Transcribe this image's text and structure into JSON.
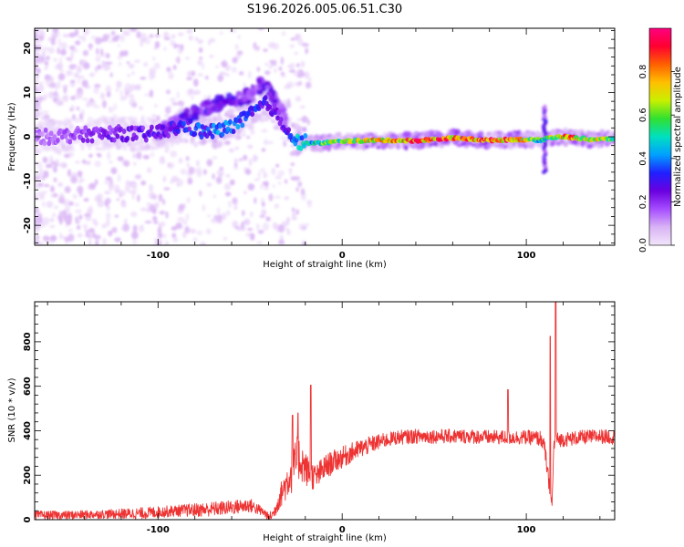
{
  "figure_title": "S196.2026.005.06.51.C30",
  "chart_data": [
    {
      "type": "heatmap",
      "xlabel": "Height of straight line (km)",
      "ylabel": "Frequency (Hz)",
      "xlim": [
        -167,
        148
      ],
      "ylim": [
        -24.5,
        24.5
      ],
      "x_ticks": [
        -100,
        0,
        100
      ],
      "y_ticks": [
        -20,
        -10,
        0,
        10,
        20
      ],
      "grid": false,
      "colorbar": {
        "label": "Normalized spectral amplitude",
        "range": [
          0,
          1
        ],
        "ticks": [
          "0.0",
          "0.2",
          "0.4",
          "0.6",
          "0.8"
        ],
        "colors": [
          "#f2e6fb",
          "#d9b3f5",
          "#a64dff",
          "#6a00e0",
          "#2020ff",
          "#00a0ff",
          "#00e0c0",
          "#30e030",
          "#c8f000",
          "#ffc000",
          "#ff6000",
          "#ff0030",
          "#ff0080"
        ]
      },
      "ridge": {
        "x": [
          -160,
          -140,
          -120,
          -105,
          -95,
          -85,
          -75,
          -65,
          -55,
          -48,
          -42,
          -38,
          -34,
          -30,
          -26,
          -22,
          -15,
          -8,
          0,
          20,
          40,
          60,
          80,
          95,
          108,
          112,
          120,
          135,
          148
        ],
        "y": [
          0,
          0.5,
          0.8,
          0.5,
          1.5,
          2.5,
          1.0,
          1.5,
          3.5,
          5.5,
          7.5,
          6.5,
          4.0,
          2.0,
          -1.0,
          -1.2,
          -1.5,
          -1.3,
          -1.0,
          -0.8,
          -0.9,
          -0.3,
          -0.8,
          -0.6,
          -0.8,
          -0.2,
          0.0,
          -0.6,
          -0.5
        ],
        "amplitude": [
          0.15,
          0.2,
          0.25,
          0.25,
          0.3,
          0.3,
          0.35,
          0.4,
          0.4,
          0.35,
          0.3,
          0.28,
          0.25,
          0.3,
          0.4,
          0.45,
          0.5,
          0.6,
          0.65,
          0.75,
          0.85,
          0.82,
          0.85,
          0.8,
          0.5,
          0.6,
          0.8,
          0.7,
          0.6
        ]
      },
      "upper_ridge": {
        "x": [
          -100,
          -90,
          -80,
          -70,
          -60,
          -50,
          -45,
          -40,
          -35,
          -30
        ],
        "y": [
          1.0,
          3.0,
          5.5,
          7.0,
          8.0,
          9.5,
          11.5,
          10.5,
          7.5,
          3.0
        ],
        "amplitude": [
          0.2,
          0.25,
          0.3,
          0.3,
          0.3,
          0.25,
          0.25,
          0.3,
          0.25,
          0.2
        ]
      },
      "vertical_burst": {
        "x": 110,
        "y_range": [
          -8,
          7
        ]
      }
    },
    {
      "type": "line",
      "xlabel": "Height of straight line (km)",
      "ylabel": "SNR (10 * v/v)",
      "xlim": [
        -167,
        148
      ],
      "ylim": [
        0,
        980
      ],
      "x_ticks": [
        -100,
        0,
        100
      ],
      "y_ticks": [
        0,
        200,
        400,
        600,
        800
      ],
      "grid": false,
      "color": "#ee3333",
      "series": [
        {
          "x": [
            -167,
            -150,
            -130,
            -110,
            -90,
            -75,
            -60,
            -50,
            -42,
            -40,
            -37,
            -34,
            -30,
            -27,
            -24,
            -22,
            -20,
            -17,
            -14,
            -12,
            -10,
            -5,
            0,
            5,
            10,
            15,
            20,
            25,
            30,
            40,
            50,
            60,
            70,
            80,
            90,
            100,
            108,
            110,
            112,
            113,
            114,
            115,
            116,
            120,
            130,
            140,
            148
          ],
          "y": [
            20,
            20,
            25,
            28,
            40,
            45,
            55,
            65,
            30,
            10,
            30,
            100,
            170,
            220,
            280,
            260,
            230,
            200,
            190,
            210,
            230,
            260,
            280,
            300,
            320,
            335,
            350,
            360,
            370,
            375,
            375,
            375,
            375,
            370,
            370,
            370,
            365,
            320,
            180,
            110,
            70,
            340,
            360,
            360,
            370,
            375,
            370
          ],
          "noise": [
            30,
            30,
            30,
            40,
            40,
            50,
            50,
            50,
            30,
            30,
            40,
            80,
            120,
            150,
            160,
            140,
            120,
            100,
            90,
            90,
            90,
            80,
            75,
            70,
            65,
            60,
            55,
            50,
            50,
            50,
            50,
            50,
            50,
            50,
            50,
            50,
            55,
            55,
            60,
            60,
            60,
            55,
            50,
            50,
            50,
            50,
            50
          ],
          "peaks": [
            {
              "x": -27,
              "y": 470
            },
            {
              "x": -24,
              "y": 480
            },
            {
              "x": -17,
              "y": 605
            },
            {
              "x": 90,
              "y": 585
            },
            {
              "x": 113,
              "y": 825
            },
            {
              "x": 116,
              "y": 980
            }
          ]
        }
      ]
    }
  ]
}
